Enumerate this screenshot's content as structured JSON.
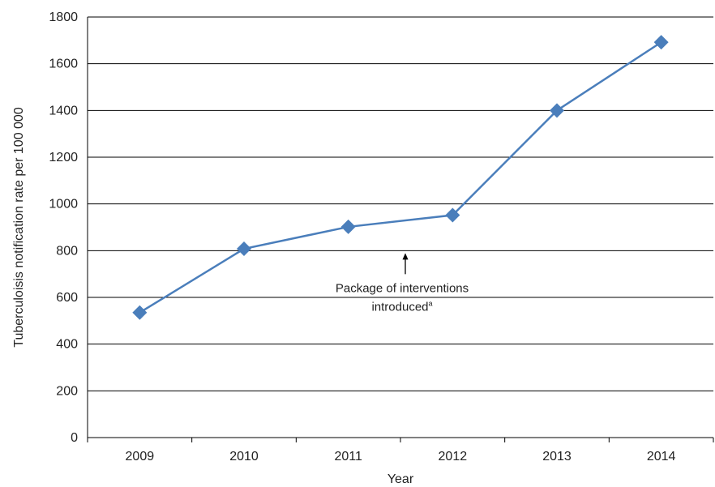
{
  "chart_data": {
    "type": "line",
    "title": "",
    "xlabel": "Year",
    "ylabel": "Tuberculoisis notification rate per 100 000",
    "categories": [
      "2009",
      "2010",
      "2011",
      "2012",
      "2013",
      "2014"
    ],
    "series": [
      {
        "values": [
          535,
          808,
          902,
          952,
          1400,
          1692
        ]
      }
    ],
    "ylim": [
      0,
      1800
    ],
    "yticks": [
      "0",
      "200",
      "400",
      "600",
      "800",
      "1000",
      "1200",
      "1400",
      "1600",
      "1800"
    ],
    "grid": true,
    "legend": "none",
    "line_color": "#4a7ebb",
    "marker_color": "#4a7ebb",
    "marker": "diamond",
    "annotation": {
      "text_line1": "Package of interventions",
      "text_line2": "introduced",
      "superscript": "a",
      "points_to": "between 2011 and 2012",
      "value": 800
    }
  }
}
